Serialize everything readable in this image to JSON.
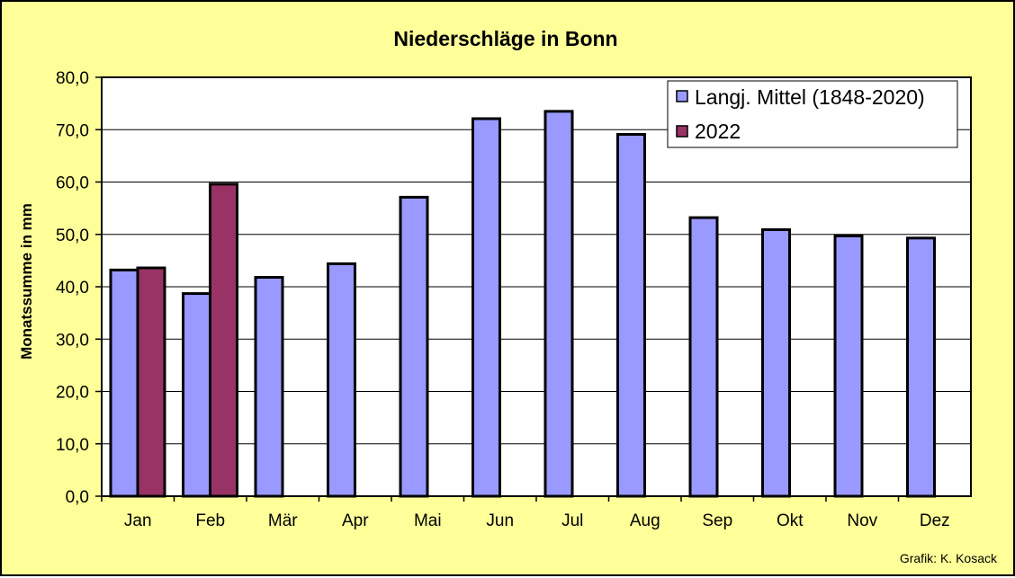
{
  "chart_data": {
    "type": "bar",
    "title": "Niederschläge in Bonn",
    "xlabel": "",
    "ylabel": "Monatssumme in mm",
    "ylim": [
      0,
      80
    ],
    "ytick_labels": [
      "0,0",
      "10,0",
      "20,0",
      "30,0",
      "40,0",
      "50,0",
      "60,0",
      "70,0",
      "80,0"
    ],
    "categories": [
      "Jan",
      "Feb",
      "Mär",
      "Apr",
      "Mai",
      "Jun",
      "Jul",
      "Aug",
      "Sep",
      "Okt",
      "Nov",
      "Dez"
    ],
    "series": [
      {
        "name": "Langj. Mittel (1848-2020)",
        "color": "#9999ff",
        "values": [
          43.2,
          38.7,
          41.8,
          44.4,
          57.1,
          72.1,
          73.5,
          69.1,
          53.2,
          50.9,
          49.7,
          49.3
        ]
      },
      {
        "name": "2022",
        "color": "#993366",
        "values": [
          43.6,
          59.6,
          null,
          null,
          null,
          null,
          null,
          null,
          null,
          null,
          null,
          null
        ]
      }
    ],
    "grid": true,
    "legend_position": "top-right",
    "plot_background": "#ffffff",
    "chart_background": "#ffff99"
  },
  "credit": "Grafik:  K. Kosack"
}
